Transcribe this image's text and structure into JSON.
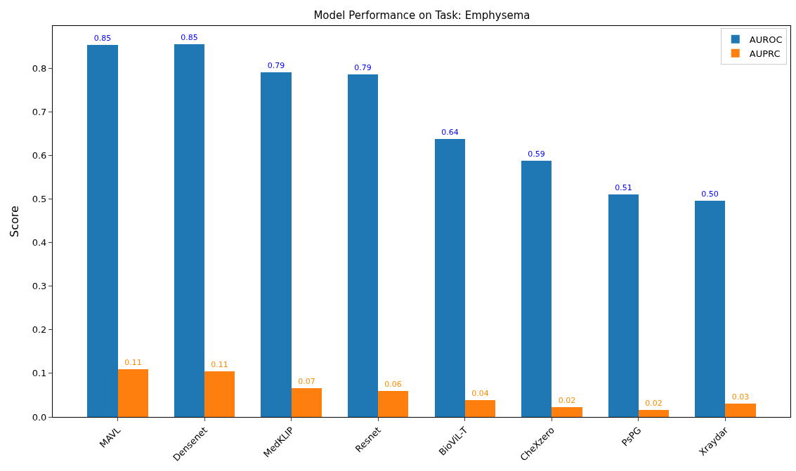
{
  "chart_data": {
    "type": "bar",
    "title": "Model Performance on Task: Emphysema",
    "ylabel": "Score",
    "categories": [
      "MAVL",
      "Densenet",
      "MedKLIP",
      "Resnet",
      "BioViL-T",
      "CheXzero",
      "PsPG",
      "Xraydar"
    ],
    "series": [
      {
        "name": "AUROC",
        "color": "#1f77b4",
        "values": [
          0.853,
          0.855,
          0.79,
          0.786,
          0.637,
          0.588,
          0.51,
          0.496
        ],
        "value_labels": [
          "0.85",
          "0.85",
          "0.79",
          "0.79",
          "0.64",
          "0.59",
          "0.51",
          "0.50"
        ]
      },
      {
        "name": "AUPRC",
        "color": "#ff7f0e",
        "values": [
          0.109,
          0.105,
          0.066,
          0.06,
          0.039,
          0.023,
          0.016,
          0.031
        ],
        "value_labels": [
          "0.11",
          "0.11",
          "0.07",
          "0.06",
          "0.04",
          "0.02",
          "0.02",
          "0.03"
        ]
      }
    ],
    "ylim": [
      0,
      0.897
    ],
    "yticks": [
      {
        "value": 0,
        "label": "0.0"
      },
      {
        "value": 0.1,
        "label": "0.1"
      },
      {
        "value": 0.2,
        "label": "0.2"
      },
      {
        "value": 0.3,
        "label": "0.3"
      },
      {
        "value": 0.4,
        "label": "0.4"
      },
      {
        "value": 0.5,
        "label": "0.5"
      },
      {
        "value": 0.6,
        "label": "0.6"
      },
      {
        "value": 0.7,
        "label": "0.7"
      },
      {
        "value": 0.8,
        "label": "0.8"
      }
    ],
    "legend": "top right"
  }
}
